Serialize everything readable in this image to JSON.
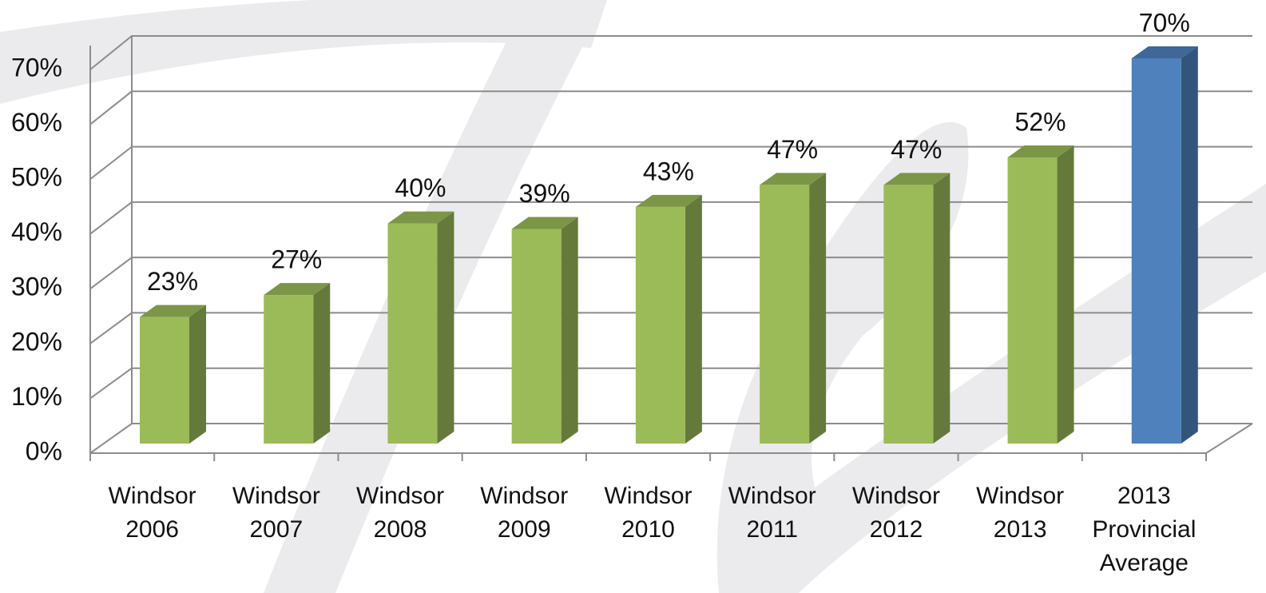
{
  "chart_data": {
    "type": "bar3d",
    "categories": [
      "Windsor 2006",
      "Windsor 2007",
      "Windsor 2008",
      "Windsor 2009",
      "Windsor 2010",
      "Windsor 2011",
      "Windsor 2012",
      "Windsor 2013",
      "2013 Provincial Average"
    ],
    "values": [
      23,
      27,
      40,
      39,
      43,
      47,
      47,
      52,
      70
    ],
    "value_labels": [
      "23%",
      "27%",
      "40%",
      "39%",
      "43%",
      "47%",
      "47%",
      "52%",
      "70%"
    ],
    "colors": [
      "#9bbb59",
      "#9bbb59",
      "#9bbb59",
      "#9bbb59",
      "#9bbb59",
      "#9bbb59",
      "#9bbb59",
      "#9bbb59",
      "#4f81bd"
    ],
    "ylim": [
      0,
      70
    ],
    "yticks": [
      {
        "value": 0,
        "label": "0%"
      },
      {
        "value": 10,
        "label": "10%"
      },
      {
        "value": 20,
        "label": "20%"
      },
      {
        "value": 30,
        "label": "30%"
      },
      {
        "value": 40,
        "label": "40%"
      },
      {
        "value": 50,
        "label": "50%"
      },
      {
        "value": 60,
        "label": "60%"
      },
      {
        "value": 70,
        "label": "70%"
      }
    ],
    "grid": true
  }
}
